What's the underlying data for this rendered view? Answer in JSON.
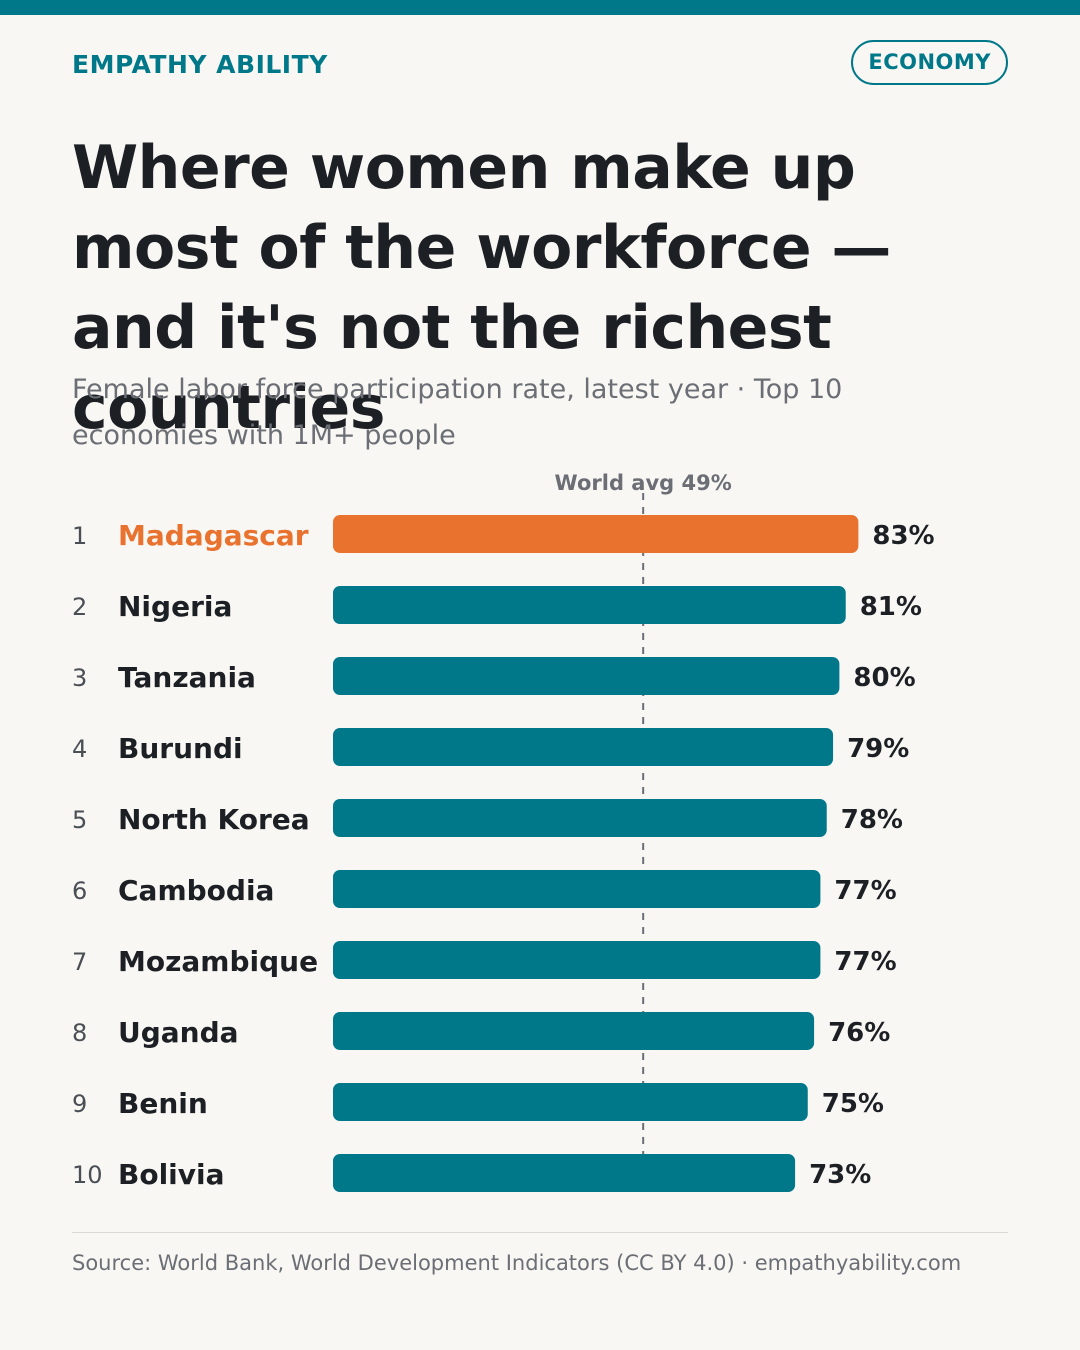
{
  "brand": "EMPATHY ABILITY",
  "tag": "ECONOMY",
  "headline": "Where women make up most of the workforce — and it's not the richest countries",
  "subtitle": "Female labor force participation rate, latest year · Top 10 economies with 1M+ people",
  "source": "Source: World Bank, World Development Indicators (CC BY 4.0) · empathyability.com",
  "colors": {
    "accent": "#00788a",
    "highlight": "#e8722e",
    "text": "#1c1f24",
    "muted": "#6b6f75",
    "background": "#f8f7f3"
  },
  "chart_data": {
    "type": "bar",
    "orientation": "horizontal",
    "ranks": [
      "1",
      "2",
      "3",
      "4",
      "5",
      "6",
      "7",
      "8",
      "9",
      "10"
    ],
    "categories": [
      "Madagascar",
      "Nigeria",
      "Tanzania",
      "Burundi",
      "North Korea",
      "Cambodia",
      "Mozambique",
      "Uganda",
      "Benin",
      "Bolivia"
    ],
    "values": [
      83,
      81,
      80,
      79,
      78,
      77,
      77,
      76,
      75,
      73
    ],
    "value_labels": [
      "83%",
      "81%",
      "80%",
      "79%",
      "78%",
      "77%",
      "77%",
      "76%",
      "75%",
      "73%"
    ],
    "highlighted_index": 0,
    "reference_line": {
      "label": "World avg 49%",
      "value": 49
    },
    "xlim": [
      0,
      100
    ]
  }
}
